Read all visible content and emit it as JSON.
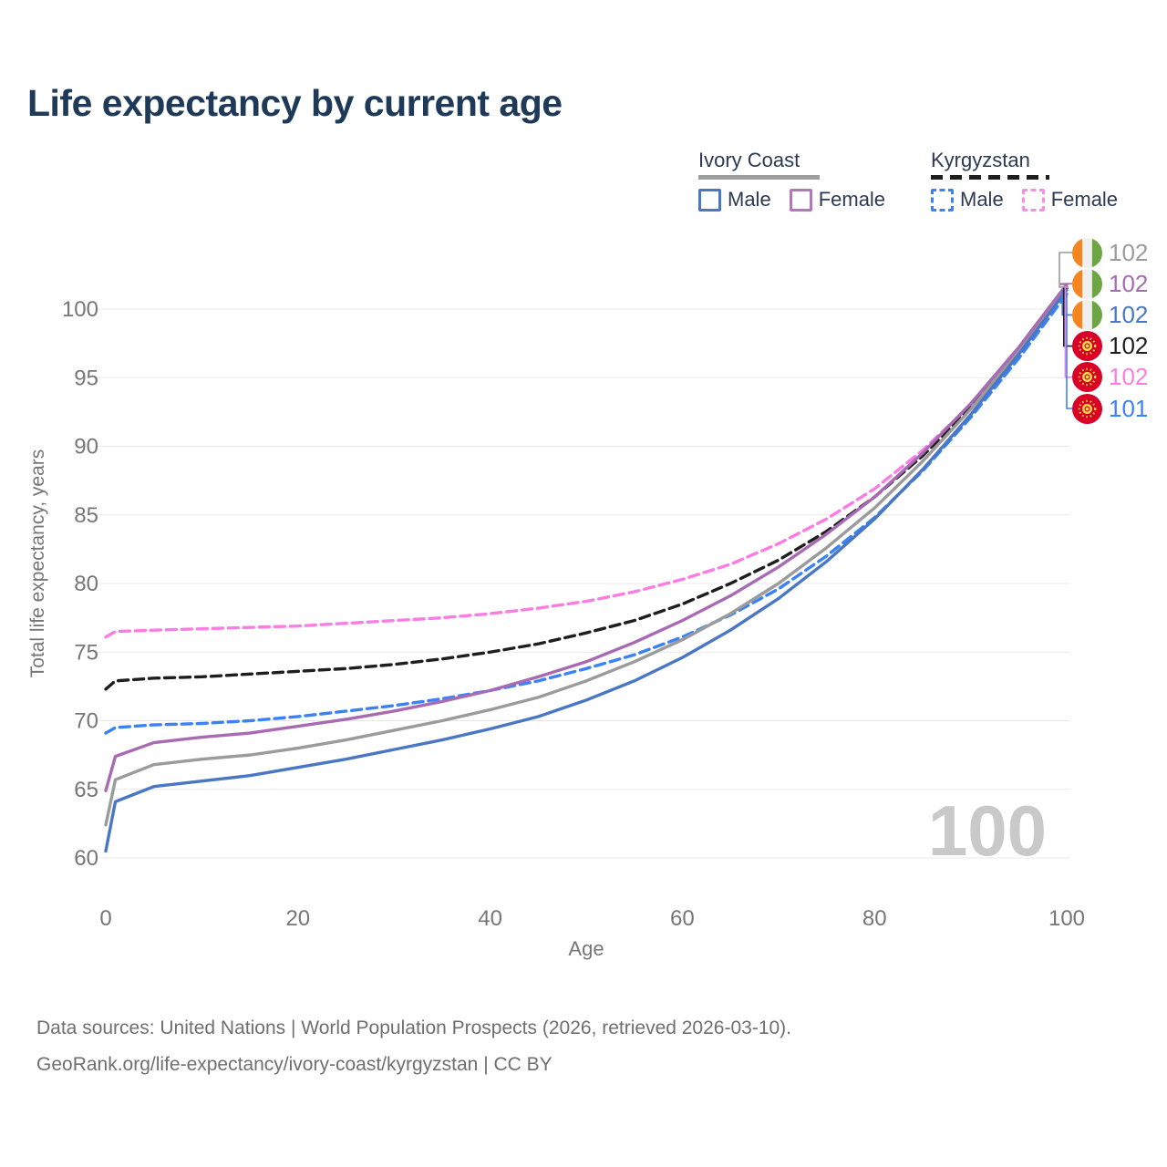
{
  "title": "Life expectancy by current age",
  "legend": {
    "groups": [
      {
        "label": "Ivory Coast",
        "line_style": "solid",
        "underline_color": "#9e9e9e",
        "items": [
          {
            "label": "Male",
            "color": "#4a77c4",
            "dashed": false
          },
          {
            "label": "Female",
            "color": "#b279b8",
            "dashed": false
          }
        ]
      },
      {
        "label": "Kyrgyzstan",
        "line_style": "dashed",
        "underline_color": "#1e1e1e",
        "items": [
          {
            "label": "Male",
            "color": "#3b82f6",
            "dashed": true
          },
          {
            "label": "Female",
            "color": "#fc8de7",
            "dashed": true
          }
        ]
      }
    ]
  },
  "chart_data": {
    "type": "line",
    "title": "Life expectancy by current age",
    "xlabel": "Age",
    "ylabel": "Total life expectancy, years",
    "xticks": [
      0,
      20,
      40,
      60,
      80,
      100
    ],
    "yticks": [
      60,
      65,
      70,
      75,
      80,
      85,
      90,
      95,
      100
    ],
    "xlim": [
      0,
      100
    ],
    "ylim": [
      60,
      102.5
    ],
    "grid": true,
    "legend_position": "top-right",
    "watermark": "100",
    "x": [
      0,
      1,
      5,
      10,
      15,
      20,
      25,
      30,
      35,
      40,
      45,
      50,
      55,
      60,
      65,
      70,
      75,
      80,
      85,
      90,
      95,
      100
    ],
    "series": [
      {
        "name": "Kyrgyzstan Female",
        "country": "Kyrgyzstan",
        "sex": "female",
        "color": "#fb7de4",
        "dashed": true,
        "values": [
          76.1,
          76.5,
          76.6,
          76.7,
          76.8,
          76.9,
          77.1,
          77.3,
          77.5,
          77.8,
          78.2,
          78.7,
          79.4,
          80.3,
          81.4,
          82.9,
          84.7,
          86.9,
          89.7,
          93.0,
          97.0,
          101.6
        ]
      },
      {
        "name": "Kyrgyzstan",
        "country": "Kyrgyzstan",
        "sex": "total",
        "color": "#1e1e1e",
        "dashed": true,
        "values": [
          72.3,
          72.9,
          73.1,
          73.2,
          73.4,
          73.6,
          73.8,
          74.1,
          74.5,
          75.0,
          75.6,
          76.4,
          77.3,
          78.5,
          80.0,
          81.7,
          83.8,
          86.3,
          89.3,
          92.8,
          96.8,
          101.5
        ]
      },
      {
        "name": "Kyrgyzstan Male",
        "country": "Kyrgyzstan",
        "sex": "male",
        "color": "#3b82f6",
        "dashed": true,
        "values": [
          69.1,
          69.5,
          69.7,
          69.8,
          70.0,
          70.3,
          70.7,
          71.1,
          71.6,
          72.2,
          72.9,
          73.8,
          74.8,
          76.1,
          77.7,
          79.6,
          82.0,
          84.8,
          88.2,
          92.1,
          96.4,
          101.1
        ]
      },
      {
        "name": "Ivory Coast",
        "country": "Ivory Coast",
        "sex": "total",
        "color": "#9b9b9b",
        "dashed": false,
        "values": [
          62.4,
          65.7,
          66.8,
          67.2,
          67.5,
          68.0,
          68.6,
          69.3,
          70.0,
          70.8,
          71.7,
          72.9,
          74.3,
          75.9,
          77.8,
          80.0,
          82.6,
          85.5,
          88.9,
          92.7,
          96.9,
          101.6
        ]
      },
      {
        "name": "Ivory Coast Male",
        "country": "Ivory Coast",
        "sex": "male",
        "color": "#4a77c4",
        "dashed": false,
        "values": [
          60.5,
          64.1,
          65.2,
          65.6,
          66.0,
          66.6,
          67.2,
          67.9,
          68.6,
          69.4,
          70.3,
          71.5,
          72.9,
          74.6,
          76.6,
          78.9,
          81.6,
          84.7,
          88.3,
          92.3,
          96.7,
          101.4
        ]
      },
      {
        "name": "Ivory Coast Female",
        "country": "Ivory Coast",
        "sex": "female",
        "color": "#a86bb3",
        "dashed": false,
        "values": [
          64.9,
          67.4,
          68.4,
          68.8,
          69.1,
          69.6,
          70.1,
          70.7,
          71.4,
          72.2,
          73.2,
          74.3,
          75.7,
          77.3,
          79.1,
          81.2,
          83.6,
          86.3,
          89.5,
          93.1,
          97.2,
          101.8
        ]
      }
    ],
    "end_labels": [
      {
        "value": "102",
        "color": "#9b9b9b",
        "flag": "ivory-coast",
        "series": "Ivory Coast"
      },
      {
        "value": "102",
        "color": "#a86bb3",
        "flag": "ivory-coast",
        "series": "Ivory Coast Female"
      },
      {
        "value": "102",
        "color": "#4a77c4",
        "flag": "ivory-coast",
        "series": "Ivory Coast Male"
      },
      {
        "value": "102",
        "color": "#1e1e1e",
        "flag": "kyrgyzstan",
        "series": "Kyrgyzstan"
      },
      {
        "value": "102",
        "color": "#fb7de4",
        "flag": "kyrgyzstan",
        "series": "Kyrgyzstan Female"
      },
      {
        "value": "101",
        "color": "#3b82f6",
        "flag": "kyrgyzstan",
        "series": "Kyrgyzstan Male"
      }
    ]
  },
  "footer": {
    "line1": "Data sources: United Nations | World Population Prospects (2026, retrieved 2026-03-10).",
    "line2": "GeoRank.org/life-expectancy/ivory-coast/kyrgyzstan | CC BY"
  }
}
